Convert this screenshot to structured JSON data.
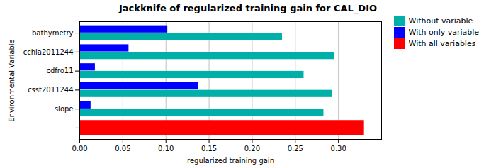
{
  "chart_data": {
    "type": "bar",
    "orientation": "horizontal",
    "title": "Jackknife of regularized training gain for CAL_DIO",
    "xlabel": "regularized training gain",
    "ylabel": "Environmental Variable",
    "categories": [
      "bathymetry",
      "cchla2011244",
      "cdfro11",
      "csst2011244",
      "slope",
      null
    ],
    "series": [
      {
        "name": "Without variable",
        "color": "#00B0A8",
        "values": [
          0.235,
          0.295,
          0.26,
          0.293,
          0.283,
          null
        ]
      },
      {
        "name": "With only variable",
        "color": "#0000FF",
        "values": [
          0.102,
          0.057,
          0.018,
          0.138,
          0.013,
          null
        ]
      },
      {
        "name": "With all variables",
        "color": "#FF0000",
        "values": [
          null,
          null,
          null,
          null,
          null,
          0.33
        ]
      }
    ],
    "xlim": [
      0,
      0.35
    ],
    "xticks": [
      {
        "value": 0,
        "label": "0.00"
      },
      {
        "value": 0.05,
        "label": "0.05"
      },
      {
        "value": 0.1,
        "label": "0.10"
      },
      {
        "value": 0.15,
        "label": "0.15"
      },
      {
        "value": 0.2,
        "label": "0.20"
      },
      {
        "value": 0.25,
        "label": "0.25"
      },
      {
        "value": 0.3,
        "label": "0.30"
      }
    ],
    "grid": true,
    "legend": "upper right"
  }
}
